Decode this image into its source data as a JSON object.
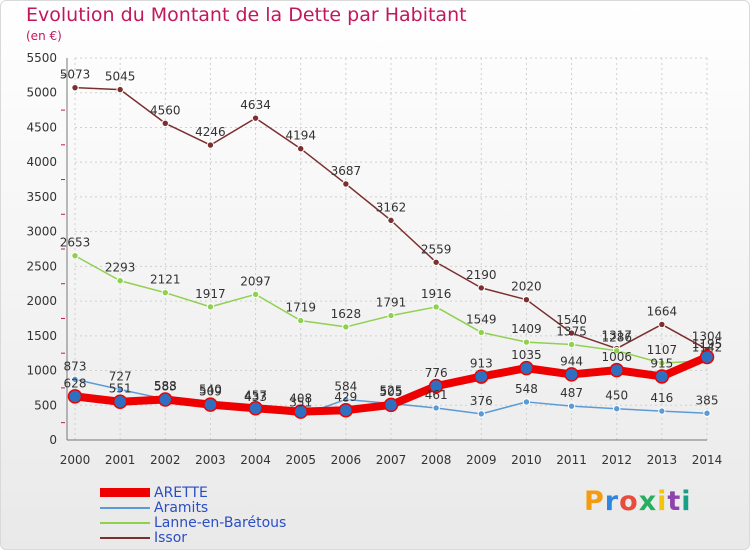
{
  "header": {
    "title": "Evolution du Montant de la Dette par Habitant",
    "subtitle": "(en €)"
  },
  "logo": {
    "text": "Proxiti",
    "colors": [
      "#f39c12",
      "#2e86de",
      "#e74c3c",
      "#27ae60",
      "#f1c40f",
      "#8e44ad",
      "#16a085"
    ]
  },
  "chart_data": {
    "type": "line",
    "title": "Evolution du Montant de la Dette par Habitant",
    "subtitle": "(en €)",
    "xlabel": "",
    "ylabel": "",
    "x": [
      "2000",
      "2001",
      "2002",
      "2003",
      "2004",
      "2005",
      "2006",
      "2007",
      "2008",
      "2009",
      "2010",
      "2011",
      "2012",
      "2013",
      "2014"
    ],
    "ylim": [
      0,
      5500
    ],
    "yticks": [
      0,
      500,
      1000,
      1500,
      2000,
      2500,
      3000,
      3500,
      4000,
      4500,
      5000,
      5500
    ],
    "grid": true,
    "legend_position": "bottom-left",
    "series": [
      {
        "name": "ARETTE",
        "color": "#ee0000",
        "values": [
          628,
          551,
          583,
          509,
          457,
          408,
          429,
          505,
          776,
          913,
          1035,
          944,
          1006,
          915,
          1195
        ],
        "labels": [
          "628",
          "551",
          "583",
          "509",
          "457",
          "408",
          "429",
          "505",
          "776",
          "913",
          "1035",
          "944",
          "1006",
          "915",
          "1195"
        ]
      },
      {
        "name": "Aramits",
        "color": "#5b9bd5",
        "values": [
          873,
          727,
          588,
          540,
          433,
          351,
          584,
          525,
          461,
          376,
          548,
          487,
          450,
          416,
          385
        ],
        "labels": [
          "873",
          "727",
          "588",
          "540",
          "433",
          "351",
          "584",
          "525",
          "461",
          "376",
          "548",
          "487",
          "450",
          "416",
          "385"
        ]
      },
      {
        "name": "Lanne-en-Barétous",
        "color": "#8fd14f",
        "values": [
          2653,
          2293,
          2121,
          1917,
          2097,
          1719,
          1628,
          1791,
          1916,
          1549,
          1409,
          1375,
          1286,
          1107,
          1142
        ],
        "labels": [
          "2653",
          "2293",
          "2121",
          "1917",
          "2097",
          "1719",
          "1628",
          "1791",
          "1916",
          "1549",
          "1409",
          "1375",
          "1286",
          "1107",
          "1142"
        ]
      },
      {
        "name": "Issor",
        "color": "#7b2f2f",
        "values": [
          5073,
          5045,
          4560,
          4246,
          4634,
          4194,
          3687,
          3162,
          2559,
          2190,
          2020,
          1540,
          1317,
          1664,
          1304
        ],
        "labels": [
          "5073",
          "5045",
          "4560",
          "4246",
          "4634",
          "4194",
          "3687",
          "3162",
          "2559",
          "2190",
          "2020",
          "1540",
          "1317",
          "1664",
          "1304"
        ]
      }
    ]
  }
}
